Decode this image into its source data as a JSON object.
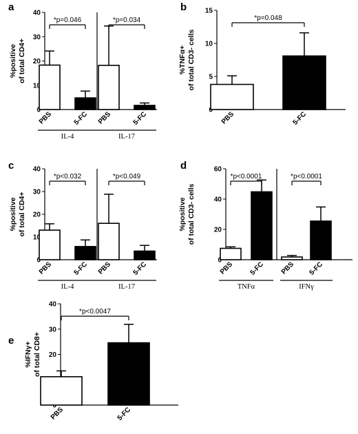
{
  "chart_data": [
    {
      "type": "bar",
      "panel_label": "a",
      "ylabel": "%positive\nof total CD4+",
      "ylim": [
        0,
        40
      ],
      "yticks": [
        0,
        10,
        20,
        30,
        40
      ],
      "colors": [
        "#ffffff",
        "#000000"
      ],
      "groups": [
        {
          "name": "IL-4",
          "categories": [
            "PBS",
            "5-FC"
          ],
          "values": [
            18.3,
            4.8
          ],
          "errors": [
            5.8,
            2.8
          ],
          "annotation": "*p=0.046"
        },
        {
          "name": "IL-17",
          "categories": [
            "PBS",
            "5-FC"
          ],
          "values": [
            18.2,
            1.7
          ],
          "errors": [
            16.2,
            1.0
          ],
          "annotation": "*p=0.034"
        }
      ]
    },
    {
      "type": "bar",
      "panel_label": "b",
      "ylabel": "%TNFα+\nof total CD3- cells",
      "ylim": [
        0,
        15
      ],
      "yticks": [
        0,
        5,
        10,
        15
      ],
      "colors": [
        "#ffffff",
        "#000000"
      ],
      "groups": [
        {
          "name": "",
          "categories": [
            "PBS",
            "5-FC"
          ],
          "values": [
            3.8,
            8.1
          ],
          "errors": [
            1.3,
            3.5
          ],
          "annotation": "*p=0.048"
        }
      ]
    },
    {
      "type": "bar",
      "panel_label": "c",
      "ylabel": "%positive\nof total CD4+",
      "ylim": [
        0,
        40
      ],
      "yticks": [
        0,
        10,
        20,
        30,
        40
      ],
      "colors": [
        "#ffffff",
        "#000000"
      ],
      "groups": [
        {
          "name": "IL-4",
          "categories": [
            "PBS",
            "5-FC"
          ],
          "values": [
            13.0,
            5.8
          ],
          "errors": [
            2.8,
            2.9
          ],
          "annotation": "*p<0.032"
        },
        {
          "name": "IL-17",
          "categories": [
            "PBS",
            "5-FC"
          ],
          "values": [
            16.0,
            3.8
          ],
          "errors": [
            12.8,
            2.5
          ],
          "annotation": "*p<0.049"
        }
      ]
    },
    {
      "type": "bar",
      "panel_label": "d",
      "ylabel": "%positive\nof total CD3- cells",
      "ylim": [
        0,
        60
      ],
      "yticks": [
        0,
        20,
        40,
        60
      ],
      "colors": [
        "#ffffff",
        "#000000"
      ],
      "groups": [
        {
          "name": "TNFα",
          "categories": [
            "PBS",
            "5-FC"
          ],
          "values": [
            7.5,
            44.8
          ],
          "errors": [
            1.0,
            7.8
          ],
          "annotation": "*p<0.0001"
        },
        {
          "name": "IFNγ",
          "categories": [
            "PBS",
            "5-FC"
          ],
          "values": [
            1.8,
            25.5
          ],
          "errors": [
            1.0,
            9.3
          ],
          "annotation": "*p<0.0001"
        }
      ]
    },
    {
      "type": "bar",
      "panel_label": "e",
      "ylabel": "%IFNγ+\nof total CD8+",
      "ylim": [
        0,
        40
      ],
      "yticks": [
        0,
        10,
        20,
        30,
        40
      ],
      "colors": [
        "#ffffff",
        "#000000"
      ],
      "groups": [
        {
          "name": "",
          "categories": [
            "PBS",
            "5-FC"
          ],
          "values": [
            11.2,
            24.6
          ],
          "errors": [
            2.3,
            7.3
          ],
          "annotation": "*p<0.0047"
        }
      ]
    }
  ]
}
